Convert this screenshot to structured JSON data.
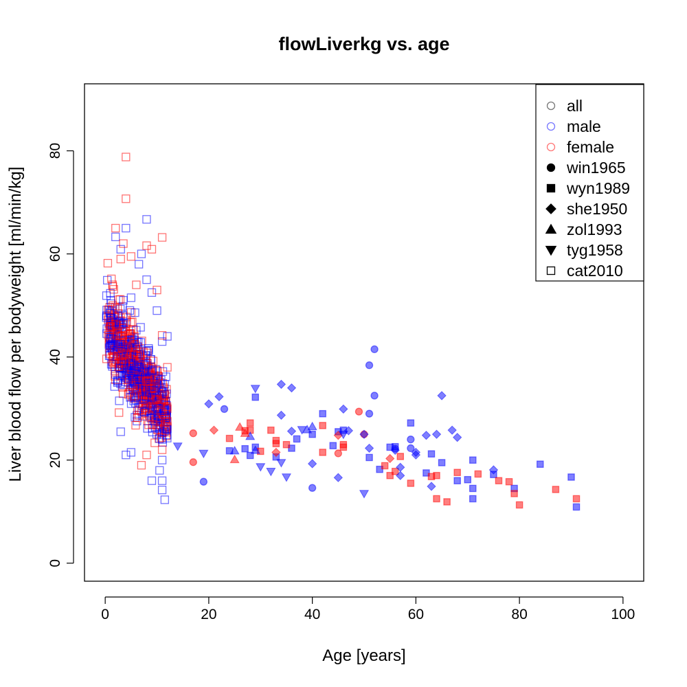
{
  "chart_data": {
    "type": "scatter",
    "title": "flowLiverkg vs. age",
    "xlabel": "Age [years]",
    "ylabel": "Liver blood flow per bodyweight [ml/min/kg]",
    "xlim": [
      -4,
      104
    ],
    "ylim": [
      -3.5,
      93
    ],
    "xticks": [
      0,
      20,
      40,
      60,
      80,
      100
    ],
    "yticks": [
      0,
      20,
      40,
      60,
      80
    ],
    "xtick_labels": [
      "0",
      "20",
      "40",
      "60",
      "80",
      "100"
    ],
    "ytick_labels": [
      "0",
      "20",
      "40",
      "60",
      "80"
    ],
    "grid": false,
    "legend_position": "top-right",
    "colors": {
      "male": "#0000ff",
      "female": "#ff0000",
      "all": "#555555",
      "frame": "#000000"
    },
    "legend": [
      {
        "label": "all",
        "marker": "circle-open",
        "color": "#777777"
      },
      {
        "label": "male",
        "marker": "circle-open",
        "color": "#7777ff"
      },
      {
        "label": "female",
        "marker": "circle-open",
        "color": "#ff7777"
      },
      {
        "label": "win1965",
        "marker": "circle",
        "color": "#000000"
      },
      {
        "label": "wyn1989",
        "marker": "square",
        "color": "#000000"
      },
      {
        "label": "she1950",
        "marker": "diamond",
        "color": "#000000"
      },
      {
        "label": "zol1993",
        "marker": "triangle-up",
        "color": "#000000"
      },
      {
        "label": "tyg1958",
        "marker": "triangle-down",
        "color": "#000000"
      },
      {
        "label": "cat2010",
        "marker": "square-open",
        "color": "#000000"
      }
    ],
    "series": [
      {
        "name": "win1965",
        "marker": "circle",
        "male": [
          [
            19,
            15.8
          ],
          [
            23,
            29.9
          ],
          [
            40,
            14.6
          ],
          [
            51,
            29
          ],
          [
            51,
            38.4
          ],
          [
            52,
            41.5
          ],
          [
            52,
            32.5
          ],
          [
            56,
            22.2
          ],
          [
            59,
            24
          ],
          [
            59,
            22.3
          ]
        ],
        "female": [
          [
            17,
            25.2
          ],
          [
            17,
            19.6
          ],
          [
            45,
            21.3
          ],
          [
            49,
            29.4
          ],
          [
            50,
            25
          ]
        ]
      },
      {
        "name": "wyn1989",
        "marker": "square",
        "male": [
          [
            24,
            21.8
          ],
          [
            27,
            22.2
          ],
          [
            28,
            20.9
          ],
          [
            29,
            32.2
          ],
          [
            29,
            22.5
          ],
          [
            33,
            20.6
          ],
          [
            36,
            22.3
          ],
          [
            37,
            24.1
          ],
          [
            40,
            25
          ],
          [
            42,
            29
          ],
          [
            44,
            22.8
          ],
          [
            45,
            25.5
          ],
          [
            46,
            25.8
          ],
          [
            51,
            20.5
          ],
          [
            53,
            18.2
          ],
          [
            55,
            22.5
          ],
          [
            56,
            22.6
          ],
          [
            59,
            27.2
          ],
          [
            62,
            17.5
          ],
          [
            63,
            21.2
          ],
          [
            65,
            19.5
          ],
          [
            68,
            16
          ],
          [
            70,
            16.2
          ],
          [
            71,
            20
          ],
          [
            71,
            14.5
          ],
          [
            71,
            12.5
          ],
          [
            75,
            17.2
          ],
          [
            79,
            14.5
          ],
          [
            84,
            19.2
          ],
          [
            90,
            16.7
          ],
          [
            91,
            10.9
          ]
        ],
        "female": [
          [
            24,
            24.2
          ],
          [
            27,
            25.7
          ],
          [
            28,
            25.8
          ],
          [
            28,
            27.2
          ],
          [
            30,
            21.7
          ],
          [
            32,
            25.8
          ],
          [
            33,
            23.8
          ],
          [
            33,
            23.2
          ],
          [
            35,
            23
          ],
          [
            42,
            26.7
          ],
          [
            42,
            21.5
          ],
          [
            46,
            23
          ],
          [
            46,
            22.5
          ],
          [
            54,
            18.9
          ],
          [
            55,
            17
          ],
          [
            56,
            17.8
          ],
          [
            57,
            20.7
          ],
          [
            59,
            15.5
          ],
          [
            63,
            16.8
          ],
          [
            64,
            17
          ],
          [
            64,
            12.5
          ],
          [
            66,
            11.9
          ],
          [
            68,
            17.6
          ],
          [
            72,
            17.3
          ],
          [
            76,
            16
          ],
          [
            78,
            15.8
          ],
          [
            79,
            13.5
          ],
          [
            80,
            11.3
          ],
          [
            87,
            14.3
          ],
          [
            91,
            12.5
          ]
        ]
      },
      {
        "name": "she1950",
        "marker": "diamond",
        "male": [
          [
            20,
            30.9
          ],
          [
            22,
            32.3
          ],
          [
            34,
            34.7
          ],
          [
            34,
            28.7
          ],
          [
            36,
            34
          ],
          [
            36,
            25.6
          ],
          [
            40,
            19.3
          ],
          [
            45,
            16.6
          ],
          [
            46,
            29.9
          ],
          [
            47,
            25.7
          ],
          [
            50,
            25
          ],
          [
            51,
            22.3
          ],
          [
            56,
            21.9
          ],
          [
            57,
            18.6
          ],
          [
            57,
            17
          ],
          [
            60,
            21.5
          ],
          [
            60,
            21
          ],
          [
            62,
            24.8
          ],
          [
            63,
            14.9
          ],
          [
            64,
            25
          ],
          [
            65,
            32.5
          ],
          [
            67,
            25.8
          ],
          [
            68,
            24.4
          ],
          [
            75,
            18.1
          ]
        ],
        "female": [
          [
            21,
            25.8
          ],
          [
            33,
            21.5
          ],
          [
            45,
            24.8
          ],
          [
            55,
            20.3
          ]
        ]
      },
      {
        "name": "zol1993",
        "marker": "triangle-up",
        "male": [
          [
            25,
            21.8
          ],
          [
            28,
            24.6
          ],
          [
            29,
            21.9
          ],
          [
            39,
            25.9
          ],
          [
            40,
            26.5
          ]
        ],
        "female": [
          [
            25,
            20.1
          ],
          [
            26,
            26.4
          ],
          [
            27,
            25.2
          ]
        ]
      },
      {
        "name": "tyg1958",
        "marker": "triangle-down",
        "male": [
          [
            14,
            22.7
          ],
          [
            19,
            21.3
          ],
          [
            29,
            33.9
          ],
          [
            30,
            18.7
          ],
          [
            32,
            17.8
          ],
          [
            34,
            19.5
          ],
          [
            35,
            16.7
          ],
          [
            38,
            25.9
          ],
          [
            46,
            25
          ],
          [
            50,
            13.5
          ]
        ],
        "female": []
      },
      {
        "name": "cat2010",
        "marker": "square-open",
        "cluster": {
          "age_min": 0.2,
          "age_max": 12.0,
          "count_male": 430,
          "count_female": 430
        },
        "male": [
          [
            2,
            63.3
          ],
          [
            3,
            60.9
          ],
          [
            3.5,
            51
          ],
          [
            4,
            65
          ],
          [
            5,
            51.5
          ],
          [
            6,
            45.2
          ],
          [
            6.5,
            58
          ],
          [
            7,
            60
          ],
          [
            8,
            66.7
          ],
          [
            8,
            55
          ],
          [
            9,
            52.5
          ],
          [
            10,
            49
          ],
          [
            11,
            43
          ],
          [
            11,
            24
          ],
          [
            11,
            20
          ],
          [
            11,
            16
          ],
          [
            11,
            14.2
          ],
          [
            11.5,
            12.3
          ],
          [
            12,
            44
          ],
          [
            12,
            26
          ],
          [
            10.5,
            18
          ],
          [
            9,
            16
          ],
          [
            5,
            21.5
          ],
          [
            4,
            21
          ],
          [
            3,
            25.5
          ],
          [
            1,
            42
          ]
        ],
        "female": [
          [
            0.5,
            58.2
          ],
          [
            1,
            46
          ],
          [
            2,
            65
          ],
          [
            3,
            59
          ],
          [
            3.5,
            62
          ],
          [
            4,
            78.8
          ],
          [
            4,
            70.7
          ],
          [
            5,
            59.5
          ],
          [
            6,
            54
          ],
          [
            8,
            61.6
          ],
          [
            9,
            60.9
          ],
          [
            11,
            63.2
          ],
          [
            10,
            53
          ],
          [
            11,
            44.2
          ],
          [
            12,
            38
          ],
          [
            7,
            19
          ],
          [
            8,
            21
          ],
          [
            11,
            22
          ],
          [
            12,
            27.5
          ]
        ]
      }
    ]
  }
}
